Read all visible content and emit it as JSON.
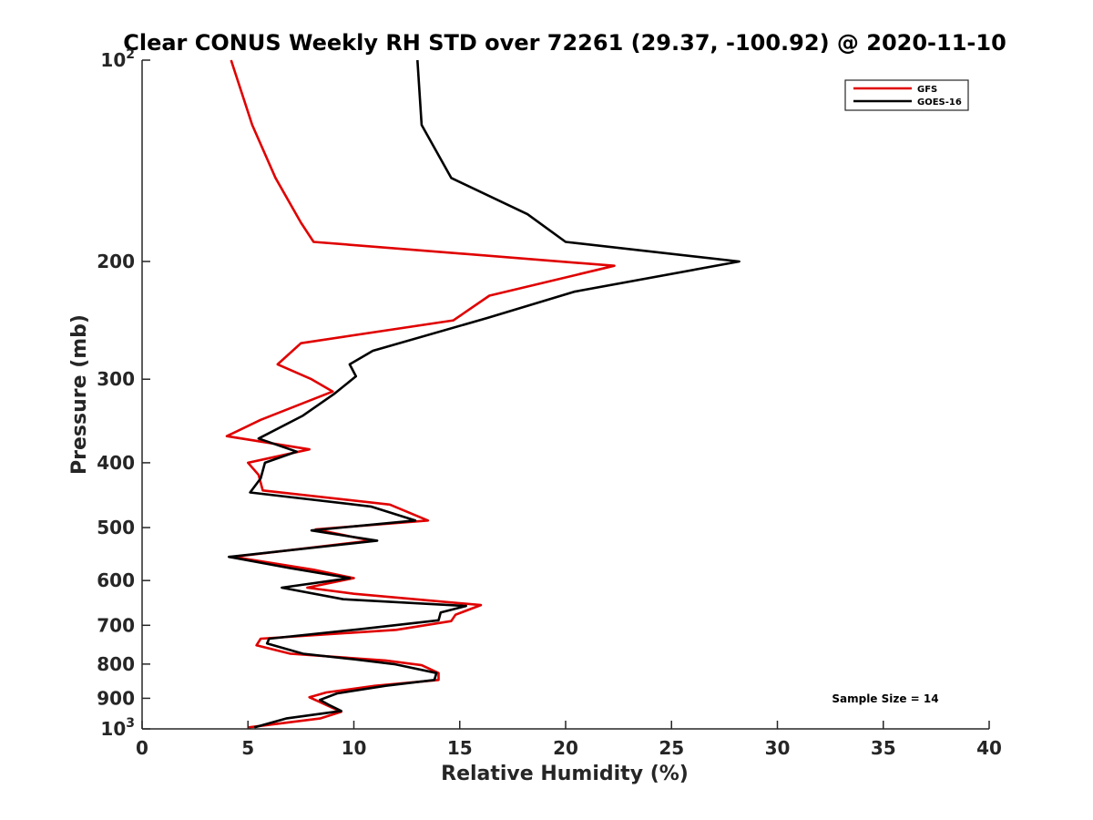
{
  "chart_data": {
    "type": "line",
    "title": "Clear CONUS Weekly RH STD over 72261 (29.37, -100.92) @ 2020-11-10",
    "xlabel": "Relative Humidity (%)",
    "ylabel": "Pressure (mb)",
    "xlim": [
      0,
      40
    ],
    "ylim": [
      1000,
      100
    ],
    "y_scale": "log",
    "y_reversed": true,
    "grid": false,
    "legend_position": "top-right",
    "x_ticks": [
      "0",
      "5",
      "10",
      "15",
      "20",
      "25",
      "30",
      "35",
      "40"
    ],
    "y_ticks": [
      {
        "value": 100,
        "base": "10",
        "exp": "2"
      },
      {
        "value": 200,
        "label": "200"
      },
      {
        "value": 300,
        "label": "300"
      },
      {
        "value": 400,
        "label": "400"
      },
      {
        "value": 500,
        "label": "500"
      },
      {
        "value": 600,
        "label": "600"
      },
      {
        "value": 700,
        "label": "700"
      },
      {
        "value": 800,
        "label": "800"
      },
      {
        "value": 900,
        "label": "900"
      },
      {
        "value": 1000,
        "base": "10",
        "exp": "3"
      }
    ],
    "annotation": "Sample Size = 14",
    "series": [
      {
        "name": "GFS",
        "color": "#e00000",
        "points": [
          [
            4.2,
            100
          ],
          [
            5.2,
            125
          ],
          [
            6.3,
            150
          ],
          [
            7.5,
            175
          ],
          [
            8.1,
            187
          ],
          [
            22.3,
            203
          ],
          [
            16.4,
            225
          ],
          [
            14.7,
            245
          ],
          [
            7.5,
            265
          ],
          [
            6.4,
            285
          ],
          [
            8.0,
            300
          ],
          [
            9.0,
            313
          ],
          [
            5.6,
            345
          ],
          [
            4.0,
            365
          ],
          [
            7.9,
            382
          ],
          [
            5.0,
            400
          ],
          [
            5.5,
            417
          ],
          [
            5.7,
            440
          ],
          [
            11.7,
            462
          ],
          [
            13.5,
            488
          ],
          [
            8.2,
            503
          ],
          [
            10.8,
            523
          ],
          [
            4.3,
            553
          ],
          [
            8.1,
            578
          ],
          [
            10.0,
            595
          ],
          [
            7.8,
            615
          ],
          [
            10.0,
            628
          ],
          [
            16.0,
            653
          ],
          [
            14.8,
            675
          ],
          [
            14.6,
            690
          ],
          [
            12.0,
            711
          ],
          [
            5.6,
            733
          ],
          [
            5.4,
            750
          ],
          [
            7.0,
            772
          ],
          [
            11.5,
            790
          ],
          [
            13.2,
            803
          ],
          [
            14.0,
            825
          ],
          [
            14.0,
            845
          ],
          [
            11.0,
            862
          ],
          [
            8.7,
            882
          ],
          [
            7.9,
            897
          ],
          [
            8.4,
            912
          ],
          [
            9.4,
            943
          ],
          [
            8.4,
            965
          ],
          [
            5.0,
            995
          ]
        ]
      },
      {
        "name": "GOES-16",
        "color": "#000000",
        "points": [
          [
            13.0,
            100
          ],
          [
            13.2,
            125
          ],
          [
            14.6,
            150
          ],
          [
            18.2,
            170
          ],
          [
            20.0,
            187
          ],
          [
            28.2,
            200
          ],
          [
            20.4,
            222
          ],
          [
            16.3,
            243
          ],
          [
            10.9,
            272
          ],
          [
            9.8,
            285
          ],
          [
            10.1,
            297
          ],
          [
            9.1,
            315
          ],
          [
            7.6,
            340
          ],
          [
            5.5,
            368
          ],
          [
            7.3,
            385
          ],
          [
            5.8,
            400
          ],
          [
            5.6,
            422
          ],
          [
            5.1,
            443
          ],
          [
            10.8,
            465
          ],
          [
            12.9,
            488
          ],
          [
            8.0,
            505
          ],
          [
            11.1,
            523
          ],
          [
            4.1,
            553
          ],
          [
            7.0,
            575
          ],
          [
            9.8,
            595
          ],
          [
            6.6,
            615
          ],
          [
            9.5,
            640
          ],
          [
            15.3,
            655
          ],
          [
            14.1,
            670
          ],
          [
            14.0,
            688
          ],
          [
            10.2,
            710
          ],
          [
            6.0,
            733
          ],
          [
            5.9,
            745
          ],
          [
            7.6,
            772
          ],
          [
            10.0,
            787
          ],
          [
            11.9,
            800
          ],
          [
            13.9,
            825
          ],
          [
            13.8,
            845
          ],
          [
            11.5,
            862
          ],
          [
            9.2,
            885
          ],
          [
            8.4,
            905
          ],
          [
            8.8,
            920
          ],
          [
            9.4,
            940
          ],
          [
            6.8,
            965
          ],
          [
            5.3,
            995
          ]
        ]
      }
    ]
  }
}
